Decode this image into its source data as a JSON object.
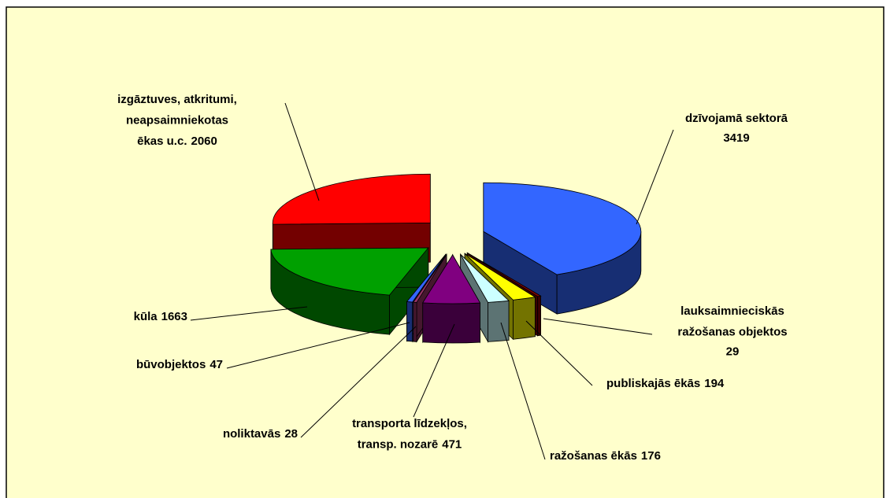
{
  "chart_data": {
    "type": "pie",
    "categories": [
      "dzīvojamā sektorā",
      "lauksaimnieciskās\nražošanas objektos",
      "publiskajās ēkās",
      "ražošanas ēkās",
      "transporta līdzekļos,\ntransp. nozarē",
      "noliktavās",
      "būvobjektos",
      "kūla",
      "izgāztuves, atkritumi,\nneapsaimniekotas\nēkas u.c."
    ],
    "values": [
      3419,
      29,
      194,
      176,
      471,
      28,
      47,
      1663,
      2060
    ],
    "colors": [
      "#3366ff",
      "#800000",
      "#ffff00",
      "#ccffff",
      "#800080",
      "#993366",
      "#3366ff",
      "#00a000",
      "#ff0000"
    ]
  }
}
